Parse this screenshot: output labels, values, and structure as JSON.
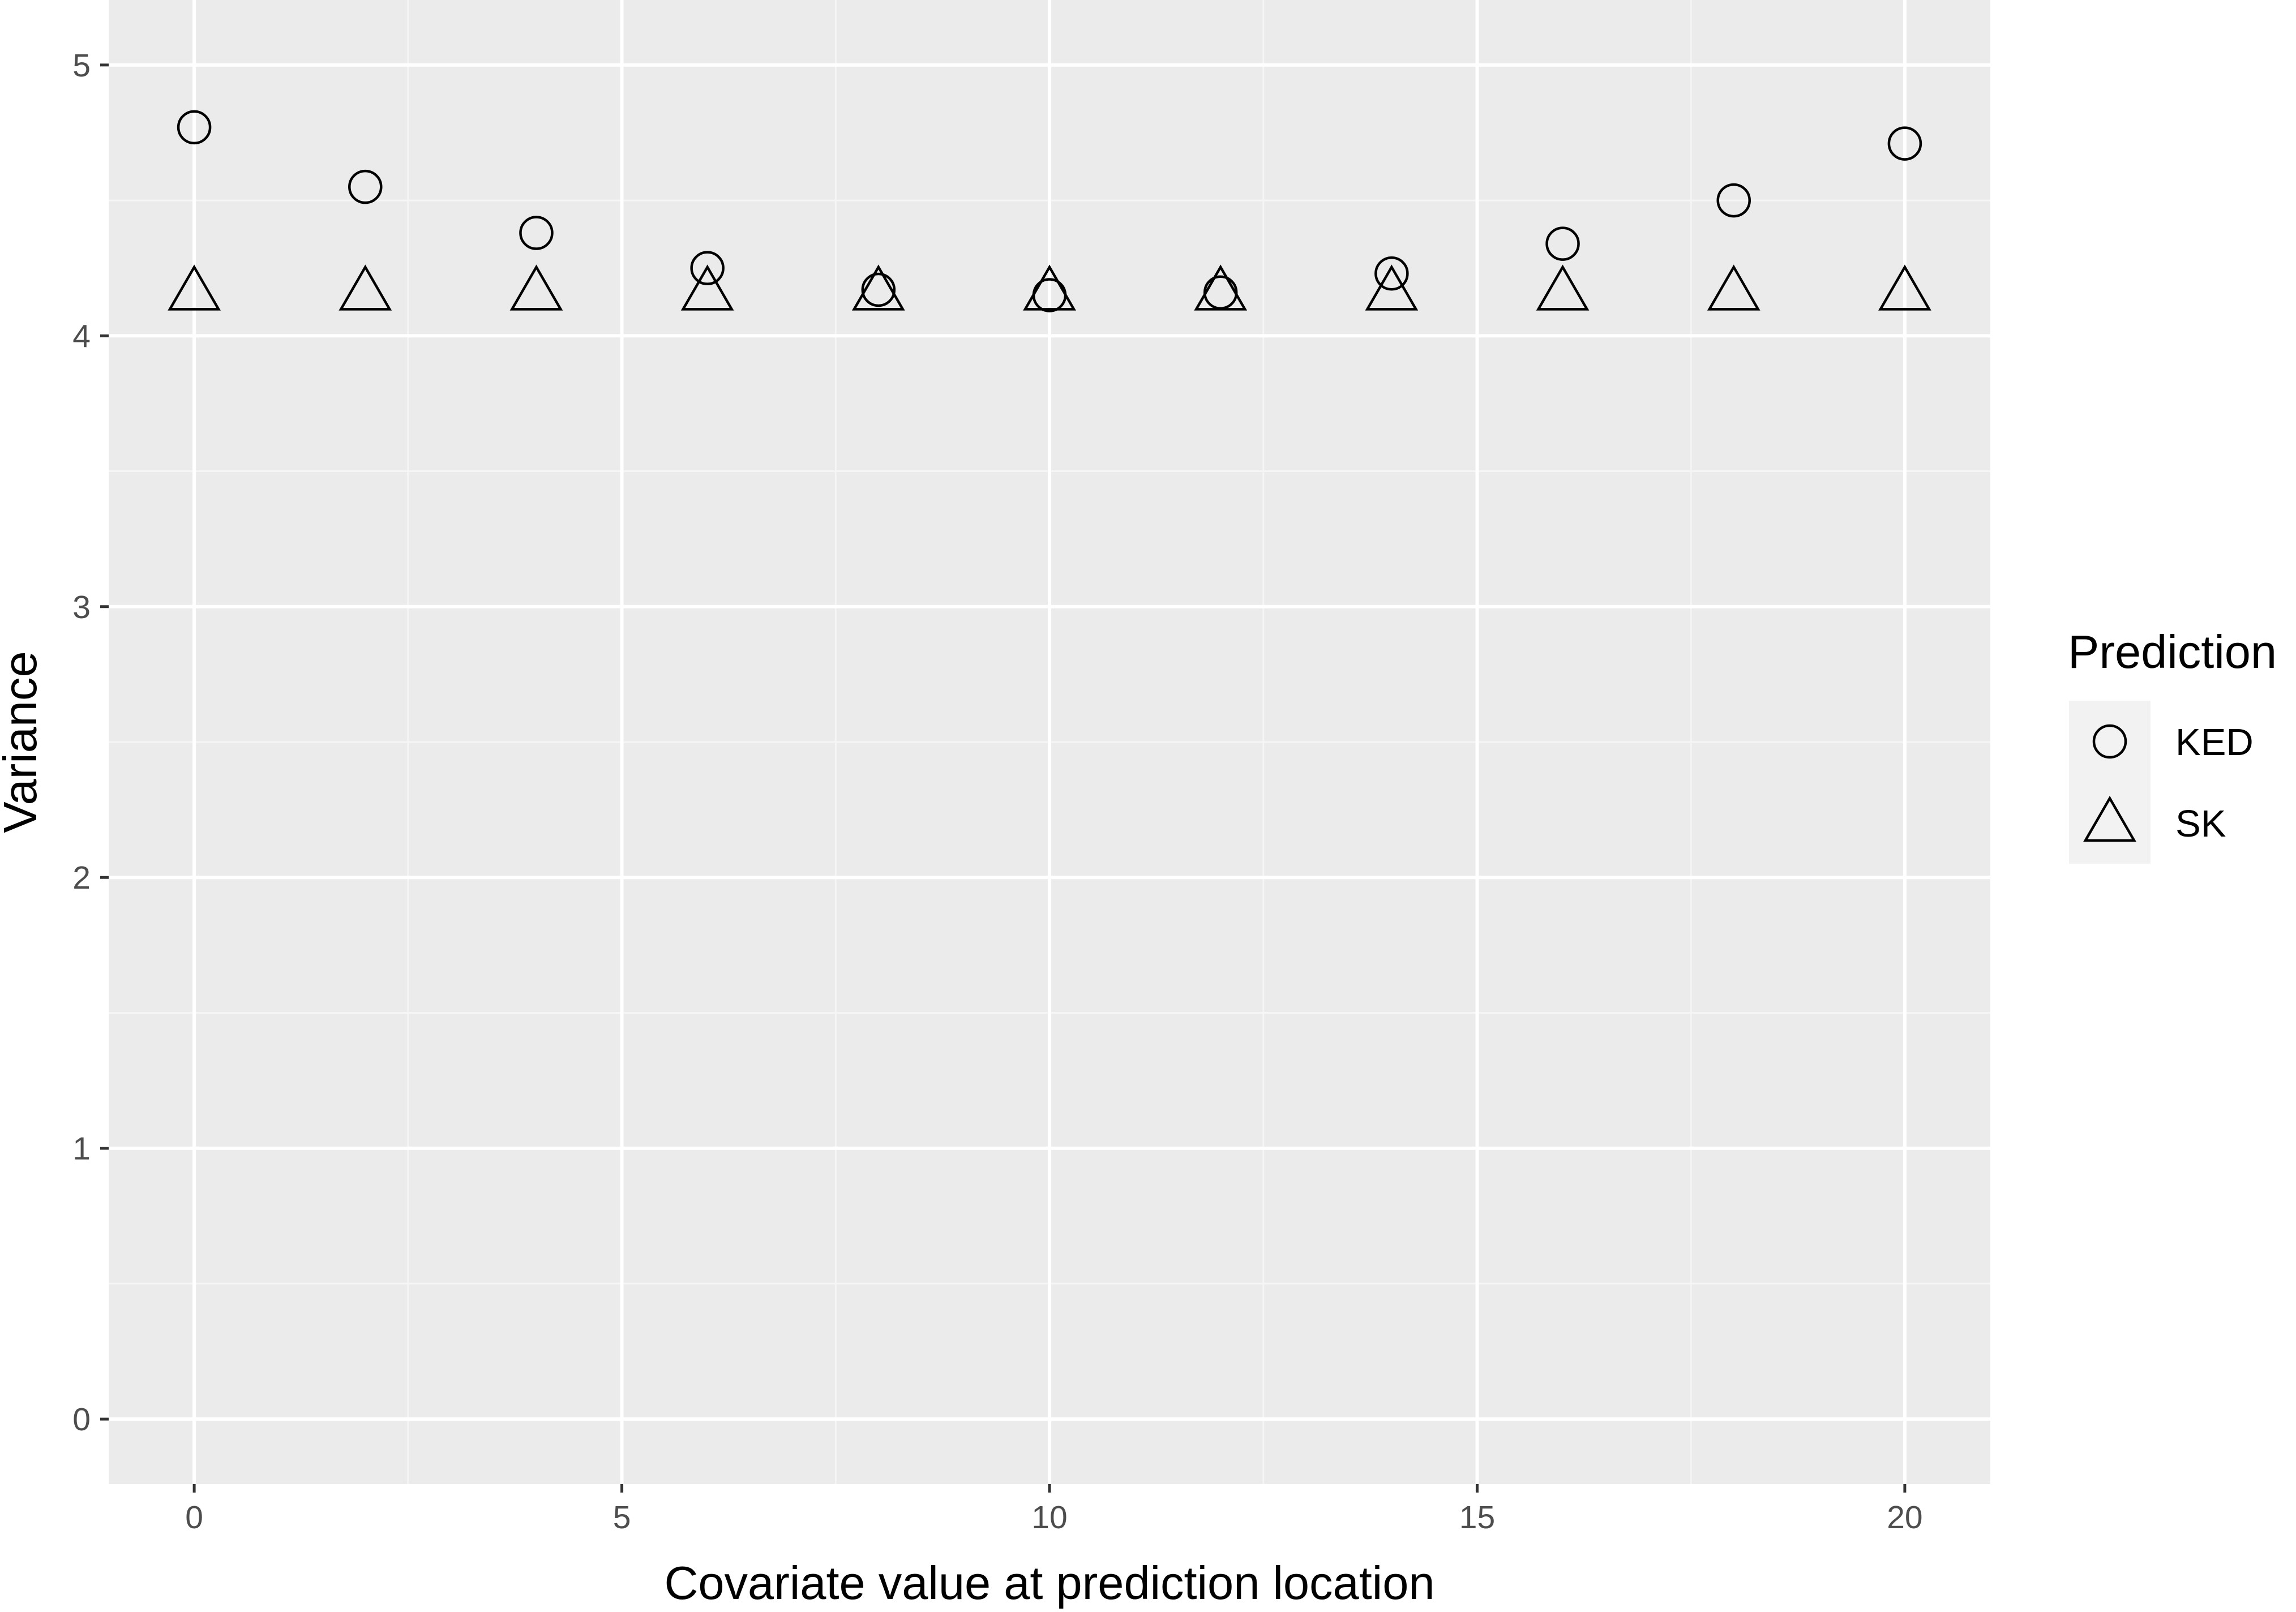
{
  "chart_data": {
    "type": "scatter",
    "xlabel": "Covariate value at prediction location",
    "ylabel": "Variance",
    "xlim": [
      -1,
      21
    ],
    "ylim": [
      -0.24,
      5.24
    ],
    "x_ticks": [
      0,
      5,
      10,
      15,
      20
    ],
    "x_tick_labels": [
      "0",
      "5",
      "10",
      "15",
      "20"
    ],
    "y_ticks": [
      0,
      1,
      2,
      3,
      4,
      5
    ],
    "y_tick_labels": [
      "0",
      "1",
      "2",
      "3",
      "4",
      "5"
    ],
    "grid": true,
    "legend": {
      "title": "Prediction",
      "position": "right",
      "entries": [
        {
          "label": "KED",
          "shape": "circle"
        },
        {
          "label": "SK",
          "shape": "triangle"
        }
      ]
    },
    "series": [
      {
        "name": "KED",
        "shape": "circle",
        "x": [
          0,
          2,
          4,
          6,
          8,
          10,
          12,
          14,
          16,
          18,
          20
        ],
        "y": [
          4.77,
          4.55,
          4.38,
          4.25,
          4.17,
          4.15,
          4.16,
          4.23,
          4.34,
          4.5,
          4.71
        ]
      },
      {
        "name": "SK",
        "shape": "triangle",
        "x": [
          0,
          2,
          4,
          6,
          8,
          10,
          12,
          14,
          16,
          18,
          20
        ],
        "y": [
          4.15,
          4.15,
          4.15,
          4.15,
          4.15,
          4.15,
          4.15,
          4.15,
          4.15,
          4.15,
          4.15
        ]
      }
    ],
    "colors": {
      "panel_background": "#ebebeb",
      "grid_major": "#ffffff",
      "grid_minor": "#f5f5f5",
      "marker_stroke": "#000000",
      "tick_text": "#4d4d4d",
      "tick_mark": "#333333",
      "legend_key_background": "#f2f2f2"
    }
  }
}
